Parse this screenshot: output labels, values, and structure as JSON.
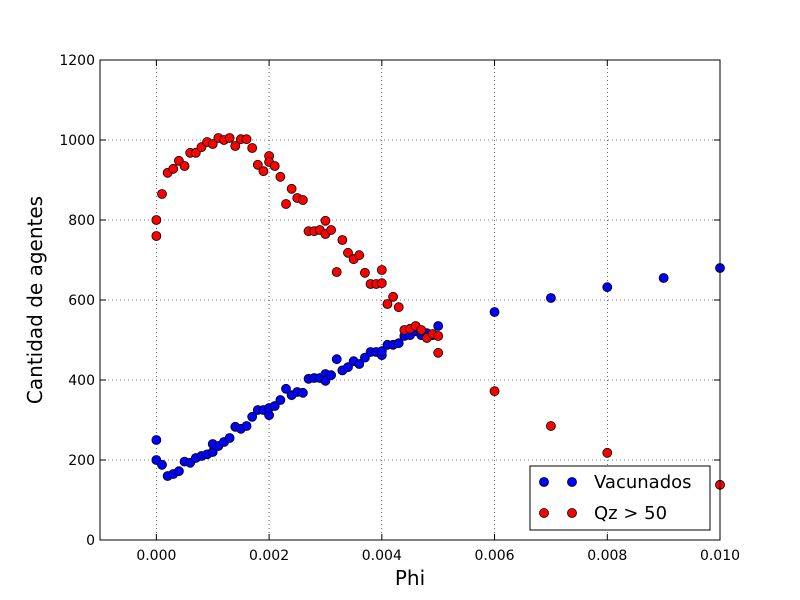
{
  "chart_data": {
    "type": "scatter",
    "xlabel": "Phi",
    "ylabel": "Cantidad de agentes",
    "xlim": [
      -0.001,
      0.01
    ],
    "ylim": [
      0,
      1200
    ],
    "xticks": [
      0.0,
      0.002,
      0.004,
      0.006,
      0.008,
      0.01
    ],
    "xtick_labels": [
      "0.000",
      "0.002",
      "0.004",
      "0.006",
      "0.008",
      "0.010"
    ],
    "yticks": [
      0,
      200,
      400,
      600,
      800,
      1000,
      1200
    ],
    "ytick_labels": [
      "0",
      "200",
      "400",
      "600",
      "800",
      "1000",
      "1200"
    ],
    "grid": true,
    "legend_position": "lower-right",
    "series": [
      {
        "name": "Vacunados",
        "color": "#0000ff",
        "points": [
          [
            0.0,
            250
          ],
          [
            0.0,
            200
          ],
          [
            0.0001,
            188
          ],
          [
            0.0002,
            160
          ],
          [
            0.0003,
            165
          ],
          [
            0.0004,
            172
          ],
          [
            0.0005,
            196
          ],
          [
            0.0006,
            193
          ],
          [
            0.0007,
            205
          ],
          [
            0.0008,
            210
          ],
          [
            0.0009,
            214
          ],
          [
            0.001,
            220
          ],
          [
            0.001,
            240
          ],
          [
            0.0011,
            235
          ],
          [
            0.0012,
            245
          ],
          [
            0.0013,
            255
          ],
          [
            0.0014,
            283
          ],
          [
            0.0015,
            278
          ],
          [
            0.0016,
            285
          ],
          [
            0.0017,
            308
          ],
          [
            0.0018,
            325
          ],
          [
            0.0019,
            325
          ],
          [
            0.002,
            312
          ],
          [
            0.002,
            330
          ],
          [
            0.0021,
            335
          ],
          [
            0.0022,
            350
          ],
          [
            0.0023,
            378
          ],
          [
            0.0024,
            362
          ],
          [
            0.0025,
            370
          ],
          [
            0.0026,
            368
          ],
          [
            0.0027,
            403
          ],
          [
            0.0028,
            405
          ],
          [
            0.0029,
            405
          ],
          [
            0.003,
            415
          ],
          [
            0.003,
            398
          ],
          [
            0.0031,
            412
          ],
          [
            0.0032,
            452
          ],
          [
            0.0033,
            424
          ],
          [
            0.0034,
            432
          ],
          [
            0.0035,
            447
          ],
          [
            0.0036,
            440
          ],
          [
            0.0037,
            456
          ],
          [
            0.0038,
            470
          ],
          [
            0.0039,
            470
          ],
          [
            0.004,
            462
          ],
          [
            0.004,
            472
          ],
          [
            0.0041,
            488
          ],
          [
            0.0042,
            488
          ],
          [
            0.0043,
            492
          ],
          [
            0.0044,
            510
          ],
          [
            0.0045,
            512
          ],
          [
            0.0046,
            522
          ],
          [
            0.0047,
            512
          ],
          [
            0.0048,
            517
          ],
          [
            0.0049,
            512
          ],
          [
            0.005,
            535
          ],
          [
            0.006,
            570
          ],
          [
            0.007,
            605
          ],
          [
            0.008,
            632
          ],
          [
            0.009,
            655
          ],
          [
            0.01,
            680
          ]
        ]
      },
      {
        "name": "Qz > 50",
        "color": "#ff0000",
        "points": [
          [
            0.0,
            800
          ],
          [
            0.0,
            760
          ],
          [
            0.0001,
            865
          ],
          [
            0.0002,
            918
          ],
          [
            0.0003,
            928
          ],
          [
            0.0004,
            948
          ],
          [
            0.0005,
            935
          ],
          [
            0.0006,
            968
          ],
          [
            0.0007,
            968
          ],
          [
            0.0008,
            982
          ],
          [
            0.0009,
            995
          ],
          [
            0.001,
            990
          ],
          [
            0.0011,
            1005
          ],
          [
            0.0012,
            1000
          ],
          [
            0.0013,
            1005
          ],
          [
            0.0014,
            985
          ],
          [
            0.0015,
            1002
          ],
          [
            0.0016,
            1002
          ],
          [
            0.0017,
            980
          ],
          [
            0.0018,
            938
          ],
          [
            0.0019,
            922
          ],
          [
            0.002,
            960
          ],
          [
            0.002,
            945
          ],
          [
            0.0021,
            935
          ],
          [
            0.0022,
            908
          ],
          [
            0.0023,
            840
          ],
          [
            0.0024,
            878
          ],
          [
            0.0025,
            855
          ],
          [
            0.0026,
            850
          ],
          [
            0.0027,
            772
          ],
          [
            0.0028,
            772
          ],
          [
            0.0029,
            775
          ],
          [
            0.003,
            798
          ],
          [
            0.003,
            765
          ],
          [
            0.0031,
            775
          ],
          [
            0.0032,
            670
          ],
          [
            0.0033,
            750
          ],
          [
            0.0034,
            718
          ],
          [
            0.0035,
            702
          ],
          [
            0.0036,
            712
          ],
          [
            0.0037,
            668
          ],
          [
            0.0038,
            640
          ],
          [
            0.0039,
            640
          ],
          [
            0.004,
            675
          ],
          [
            0.004,
            642
          ],
          [
            0.0041,
            590
          ],
          [
            0.0042,
            608
          ],
          [
            0.0043,
            582
          ],
          [
            0.0044,
            525
          ],
          [
            0.0045,
            528
          ],
          [
            0.0046,
            535
          ],
          [
            0.0047,
            525
          ],
          [
            0.0048,
            505
          ],
          [
            0.0049,
            515
          ],
          [
            0.005,
            510
          ],
          [
            0.005,
            468
          ],
          [
            0.006,
            372
          ],
          [
            0.007,
            285
          ],
          [
            0.008,
            218
          ],
          [
            0.01,
            138
          ]
        ]
      }
    ]
  }
}
